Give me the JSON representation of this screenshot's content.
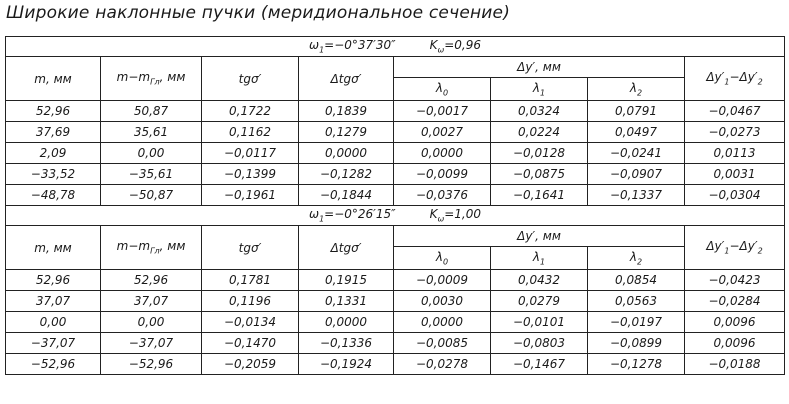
{
  "title": "Широкие наклонные пучки (меридиональное сечение)",
  "header": {
    "m": "m, мм",
    "m_diff": "m−m",
    "m_diff_sub": "Гл",
    "m_diff_unit": ", мм",
    "tg": "tgσ′",
    "dtg": "Δtgσ′",
    "dy": "Δy′, мм",
    "lambda": "λ",
    "l0": "0",
    "l1": "1",
    "l2": "2",
    "dy12": "Δy′",
    "dy12_sub1": "1",
    "dy12_mid": "−Δy′",
    "dy12_sub2": "2"
  },
  "sections": [
    {
      "omega_label": "ω",
      "omega_sub": "1",
      "omega_value": "=−0°37′30″",
      "k_label": "K",
      "k_sub": "ω",
      "k_value": "=0,96",
      "rows": [
        [
          "52,96",
          "50,87",
          "0,1722",
          "0,1839",
          "−0,0017",
          "0,0324",
          "0,0791",
          "−0,0467"
        ],
        [
          "37,69",
          "35,61",
          "0,1162",
          "0,1279",
          "0,0027",
          "0,0224",
          "0,0497",
          "−0,0273"
        ],
        [
          "2,09",
          "0,00",
          "−0,0117",
          "0,0000",
          "0,0000",
          "−0,0128",
          "−0,0241",
          "0,0113"
        ],
        [
          "−33,52",
          "−35,61",
          "−0,1399",
          "−0,1282",
          "−0,0099",
          "−0,0875",
          "−0,0907",
          "0,0031"
        ],
        [
          "−48,78",
          "−50,87",
          "−0,1961",
          "−0,1844",
          "−0,0376",
          "−0,1641",
          "−0,1337",
          "−0,0304"
        ]
      ]
    },
    {
      "omega_label": "ω",
      "omega_sub": "1",
      "omega_value": "=−0°26′15″",
      "k_label": "K",
      "k_sub": "ω",
      "k_value": "=1,00",
      "rows": [
        [
          "52,96",
          "52,96",
          "0,1781",
          "0,1915",
          "−0,0009",
          "0,0432",
          "0,0854",
          "−0,0423"
        ],
        [
          "37,07",
          "37,07",
          "0,1196",
          "0,1331",
          "0,0030",
          "0,0279",
          "0,0563",
          "−0,0284"
        ],
        [
          "0,00",
          "0,00",
          "−0,0134",
          "0,0000",
          "0,0000",
          "−0,0101",
          "−0,0197",
          "0,0096"
        ],
        [
          "−37,07",
          "−37,07",
          "−0,1470",
          "−0,1336",
          "−0,0085",
          "−0,0803",
          "−0,0899",
          "0,0096"
        ],
        [
          "−52,96",
          "−52,96",
          "−0,2059",
          "−0,1924",
          "−0,0278",
          "−0,1467",
          "−0,1278",
          "−0,0188"
        ]
      ]
    }
  ]
}
